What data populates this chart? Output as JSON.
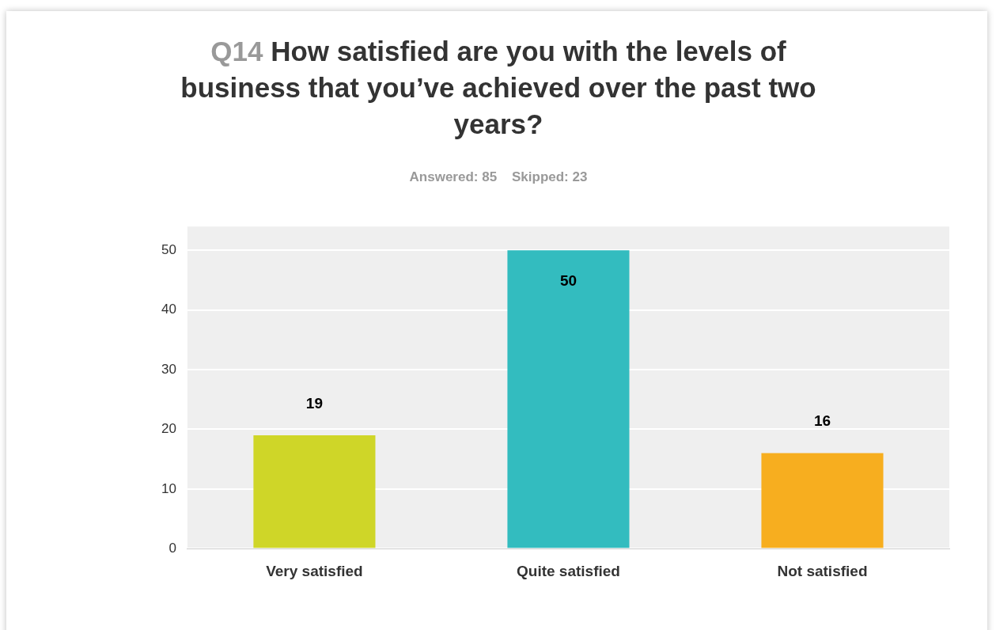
{
  "chart_data": {
    "type": "bar",
    "title": "Q14 How satisfied are you with the levels of business that you’ve achieved over the past two years?",
    "subtitle": "Answered: 85    Skipped: 23",
    "categories": [
      "Very satisfied",
      "Quite satisfied",
      "Not satisfied"
    ],
    "values": [
      19,
      50,
      16
    ],
    "colors": [
      "#cfd628",
      "#33bcbf",
      "#f7ae1f"
    ],
    "ylim": [
      0,
      54
    ],
    "yticks": [
      0,
      10,
      20,
      30,
      40,
      50
    ],
    "grid": "y",
    "data_labels": true,
    "legend": false
  }
}
